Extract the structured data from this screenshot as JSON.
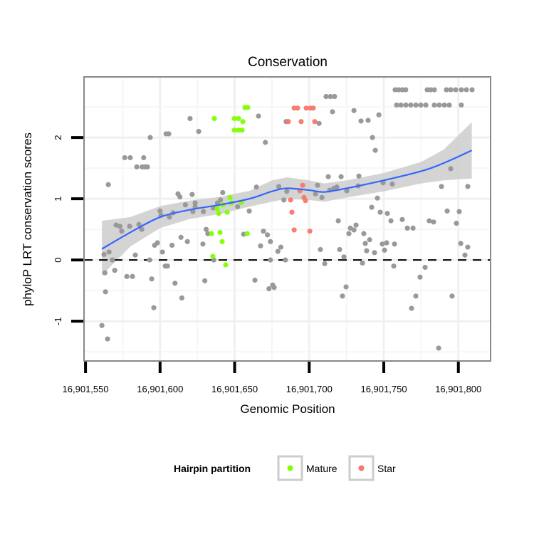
{
  "chart_data": {
    "type": "scatter",
    "title": "Conservation",
    "xlabel": "Genomic Position",
    "ylabel": "phyloP LRT conservation scores",
    "xlim": [
      16901549,
      16901821.6
    ],
    "ylim": [
      -1.65,
      2.99
    ],
    "x_ticks": [
      16901550,
      16901600,
      16901650,
      16901700,
      16901750,
      16901800
    ],
    "x_tick_labels": [
      "16,901,550",
      "16,901,600",
      "16,901,650",
      "16,901,700",
      "16,901,750",
      "16,901,800"
    ],
    "y_ticks": [
      -1,
      0,
      1,
      2
    ],
    "y_tick_labels": [
      "-1",
      "0",
      "1",
      "2"
    ],
    "grid": true,
    "reference_line": {
      "y": 0,
      "style": "dashed"
    },
    "legend": {
      "title": "Hairpin partition",
      "position": "bottom",
      "entries": [
        {
          "label": "Mature",
          "color": "#7fff00"
        },
        {
          "label": "Star",
          "color": "#f8766d"
        }
      ]
    },
    "colors": {
      "other": "#999999",
      "Mature": "#7fff00",
      "Star": "#f8766d",
      "smooth": "#3366ff",
      "band": "#cccccc"
    },
    "series": [
      {
        "name": "Other",
        "points": [
          [
            16901561,
            -1.07
          ],
          [
            16901563,
            -0.21
          ],
          [
            16901563.4,
            -0.52
          ],
          [
            16901564.8,
            -1.29
          ],
          [
            16901565.3,
            1.23
          ],
          [
            16901562.4,
            0.09
          ],
          [
            16901565.8,
            0.13
          ],
          [
            16901568,
            0
          ],
          [
            16901569.6,
            -0.17
          ],
          [
            16901570.5,
            0.57
          ],
          [
            16901573,
            0.55
          ],
          [
            16901574.3,
            0.47
          ],
          [
            16901576.3,
            1.67
          ],
          [
            16901580,
            1.67
          ],
          [
            16901577.7,
            -0.27
          ],
          [
            16901579.6,
            0.55
          ],
          [
            16901581.5,
            -0.27
          ],
          [
            16901583.4,
            0.08
          ],
          [
            16901584.4,
            1.52
          ],
          [
            16901588,
            1.52
          ],
          [
            16901589,
            1.67
          ],
          [
            16901590,
            1.52
          ],
          [
            16901591.5,
            1.52
          ],
          [
            16901593.4,
            2.0
          ],
          [
            16901587.7,
            0.5
          ],
          [
            16901585.8,
            0.58
          ],
          [
            16901593,
            0
          ],
          [
            16901594.4,
            -0.31
          ],
          [
            16901595.8,
            -0.78
          ],
          [
            16901596.3,
            0.24
          ],
          [
            16901598.2,
            0.28
          ],
          [
            16901600.6,
            0.73
          ],
          [
            16901600,
            0.8
          ],
          [
            16901601.6,
            0.13
          ],
          [
            16901603.5,
            -0.1
          ],
          [
            16901605,
            -0.1
          ],
          [
            16901604,
            2.06
          ],
          [
            16901605.8,
            2.06
          ],
          [
            16901606.3,
            0.7
          ],
          [
            16901608,
            0.24
          ],
          [
            16901608.7,
            0.77
          ],
          [
            16901610,
            -0.38
          ],
          [
            16901612,
            1.08
          ],
          [
            16901613.3,
            1.03
          ],
          [
            16901614.6,
            -0.62
          ],
          [
            16901614,
            0.37
          ],
          [
            16901617,
            0.9
          ],
          [
            16901618.3,
            0.3
          ],
          [
            16901620.1,
            2.31
          ],
          [
            16901621.5,
            1.07
          ],
          [
            16901622,
            0.79
          ],
          [
            16901623.5,
            0.93
          ],
          [
            16901623.5,
            0.87
          ],
          [
            16901625.9,
            2.1
          ],
          [
            16901628.7,
            0.26
          ],
          [
            16901629,
            0.79
          ],
          [
            16901630,
            -0.34
          ],
          [
            16901630.9,
            0.5
          ],
          [
            16901632,
            0.43
          ],
          [
            16901635.6,
            0.85
          ],
          [
            16901638.5,
            0.93
          ],
          [
            16901636,
            0
          ],
          [
            16901640.5,
            0.98
          ],
          [
            16901642,
            1.1
          ],
          [
            16901652,
            0.87
          ],
          [
            16901656,
            0.42
          ],
          [
            16901659.8,
            0.8
          ],
          [
            16901663.6,
            -0.33
          ],
          [
            16901664.6,
            1.19
          ],
          [
            16901666,
            2.35
          ],
          [
            16901667.4,
            0.23
          ],
          [
            16901669.3,
            0.47
          ],
          [
            16901670.6,
            1.92
          ],
          [
            16901672,
            0.41
          ],
          [
            16901673,
            -0.47
          ],
          [
            16901674,
            0
          ],
          [
            16901674,
            0.3
          ],
          [
            16901675.5,
            -0.41
          ],
          [
            16901676.5,
            -0.45
          ],
          [
            16901679,
            0.14
          ],
          [
            16901679.6,
            1.2
          ],
          [
            16901681,
            0.21
          ],
          [
            16901683,
            0.98
          ],
          [
            16901684,
            0
          ],
          [
            16901685,
            1.12
          ],
          [
            16901684.5,
            2.26
          ],
          [
            16901706.6,
            2.23
          ],
          [
            16901711.3,
            2.67
          ],
          [
            16901714.2,
            2.67
          ],
          [
            16901717,
            2.67
          ],
          [
            16901715.6,
            2.42
          ],
          [
            16901730,
            2.44
          ],
          [
            16901734.7,
            2.27
          ],
          [
            16901739.5,
            2.28
          ],
          [
            16901746.7,
            2.37
          ],
          [
            16901742.4,
            2.0
          ],
          [
            16901744.3,
            1.79
          ],
          [
            16901757.6,
            2.78
          ],
          [
            16901760,
            2.78
          ],
          [
            16901762.4,
            2.78
          ],
          [
            16901764.7,
            2.78
          ],
          [
            16901779.1,
            2.78
          ],
          [
            16901781.4,
            2.78
          ],
          [
            16901783.9,
            2.78
          ],
          [
            16901792,
            2.78
          ],
          [
            16901794.9,
            2.78
          ],
          [
            16901798.2,
            2.78
          ],
          [
            16901802,
            2.78
          ],
          [
            16901805.4,
            2.78
          ],
          [
            16901809.2,
            2.78
          ],
          [
            16901758.6,
            2.53
          ],
          [
            16901761.5,
            2.53
          ],
          [
            16901764.8,
            2.53
          ],
          [
            16901768.1,
            2.53
          ],
          [
            16901771.5,
            2.53
          ],
          [
            16901774.8,
            2.53
          ],
          [
            16901778.2,
            2.53
          ],
          [
            16901783.9,
            2.53
          ],
          [
            16901787.2,
            2.53
          ],
          [
            16901790.6,
            2.53
          ],
          [
            16901793.9,
            2.53
          ],
          [
            16901802,
            2.53
          ],
          [
            16901712.8,
            1.36
          ],
          [
            16901721.4,
            1.36
          ],
          [
            16901733.3,
            1.37
          ],
          [
            16901705.6,
            1.22
          ],
          [
            16901718.5,
            1.19
          ],
          [
            16901716.6,
            1.17
          ],
          [
            16901713.7,
            1.14
          ],
          [
            16901704.2,
            1.08
          ],
          [
            16901708.5,
            1.02
          ],
          [
            16901725.2,
            1.13
          ],
          [
            16901732.8,
            1.21
          ],
          [
            16901749.5,
            1.26
          ],
          [
            16901755.7,
            1.24
          ],
          [
            16901794.9,
            1.49
          ],
          [
            16901788.7,
            1.2
          ],
          [
            16901806.3,
            1.2
          ],
          [
            16901745.7,
            1.01
          ],
          [
            16901741.9,
            0.86
          ],
          [
            16901747.6,
            0.78
          ],
          [
            16901752.4,
            0.76
          ],
          [
            16901754.8,
            0.64
          ],
          [
            16901762.4,
            0.66
          ],
          [
            16901765.8,
            0.52
          ],
          [
            16901769.6,
            0.52
          ],
          [
            16901719.5,
            0.64
          ],
          [
            16901780.5,
            0.64
          ],
          [
            16901783.4,
            0.62
          ],
          [
            16901792.5,
            0.8
          ],
          [
            16901800.6,
            0.79
          ],
          [
            16901798.7,
            0.6
          ],
          [
            16901727.6,
            0.52
          ],
          [
            16901731.4,
            0.57
          ],
          [
            16901730,
            0.49
          ],
          [
            16901726.6,
            0.43
          ],
          [
            16901736.6,
            0.43
          ],
          [
            16901740.5,
            0.33
          ],
          [
            16901737.6,
            0.27
          ],
          [
            16901738.5,
            0.15
          ],
          [
            16901743.8,
            0.12
          ],
          [
            16901749,
            0.26
          ],
          [
            16901751.9,
            0.28
          ],
          [
            16901757.2,
            0.26
          ],
          [
            16901750.5,
            0.16
          ],
          [
            16901707.5,
            0.17
          ],
          [
            16901720.4,
            0.17
          ],
          [
            16901723.3,
            0.05
          ],
          [
            16901710.4,
            -0.06
          ],
          [
            16901735.7,
            -0.05
          ],
          [
            16901756.7,
            -0.1
          ],
          [
            16901777.7,
            -0.12
          ],
          [
            16901774.3,
            -0.28
          ],
          [
            16901801.6,
            0.27
          ],
          [
            16901806.3,
            0.21
          ],
          [
            16901804.4,
            0.08
          ],
          [
            16901724.7,
            -0.44
          ],
          [
            16901722.3,
            -0.59
          ],
          [
            16901771.5,
            -0.59
          ],
          [
            16901768.6,
            -0.79
          ],
          [
            16901795.8,
            -0.59
          ],
          [
            16901786.8,
            -1.44
          ]
        ]
      },
      {
        "name": "Mature",
        "points": [
          [
            16901636.4,
            2.31
          ],
          [
            16901649.8,
            2.31
          ],
          [
            16901652.6,
            2.31
          ],
          [
            16901656.9,
            2.49
          ],
          [
            16901658.8,
            2.49
          ],
          [
            16901655.5,
            2.26
          ],
          [
            16901649.8,
            2.12
          ],
          [
            16901652.6,
            2.12
          ],
          [
            16901655,
            2.12
          ],
          [
            16901646.9,
            1.02
          ],
          [
            16901647.9,
            0.93
          ],
          [
            16901642.1,
            0.9
          ],
          [
            16901638.3,
            0.84
          ],
          [
            16901639.3,
            0.76
          ],
          [
            16901645,
            0.78
          ],
          [
            16901654.5,
            0.94
          ],
          [
            16901634.5,
            0.43
          ],
          [
            16901640.2,
            0.45
          ],
          [
            16901641.6,
            0.3
          ],
          [
            16901658.4,
            0.43
          ],
          [
            16901635.4,
            0.06
          ],
          [
            16901644,
            -0.08
          ]
        ]
      },
      {
        "name": "Star",
        "points": [
          [
            16901686,
            2.26
          ],
          [
            16901694.6,
            2.26
          ],
          [
            16901703.7,
            2.26
          ],
          [
            16901689.9,
            2.48
          ],
          [
            16901692.2,
            2.48
          ],
          [
            16901698,
            2.48
          ],
          [
            16901700.8,
            2.48
          ],
          [
            16901702.7,
            2.48
          ],
          [
            16901695.6,
            1.22
          ],
          [
            16901693.7,
            1.13
          ],
          [
            16901696.5,
            1.02
          ],
          [
            16901697.5,
            0.97
          ],
          [
            16901687.5,
            0.98
          ],
          [
            16901688.4,
            0.78
          ],
          [
            16901689.9,
            0.49
          ],
          [
            16901700.4,
            0.47
          ]
        ]
      }
    ],
    "smooth": {
      "x": [
        16901561,
        16901580,
        16901600,
        16901620,
        16901640,
        16901660,
        16901675,
        16901685,
        16901700,
        16901710,
        16901725,
        16901750,
        16901775,
        16901790,
        16901809
      ],
      "y": [
        0.18,
        0.45,
        0.7,
        0.82,
        0.9,
        1.0,
        1.12,
        1.17,
        1.14,
        1.11,
        1.17,
        1.3,
        1.45,
        1.58,
        1.79
      ],
      "upper": [
        0.64,
        0.7,
        0.88,
        0.97,
        1.03,
        1.13,
        1.3,
        1.35,
        1.3,
        1.25,
        1.3,
        1.42,
        1.6,
        1.8,
        2.25
      ],
      "lower": [
        -0.25,
        0.22,
        0.52,
        0.67,
        0.75,
        0.87,
        0.95,
        1.0,
        0.98,
        0.95,
        1.02,
        1.12,
        1.25,
        1.3,
        1.33
      ]
    }
  }
}
